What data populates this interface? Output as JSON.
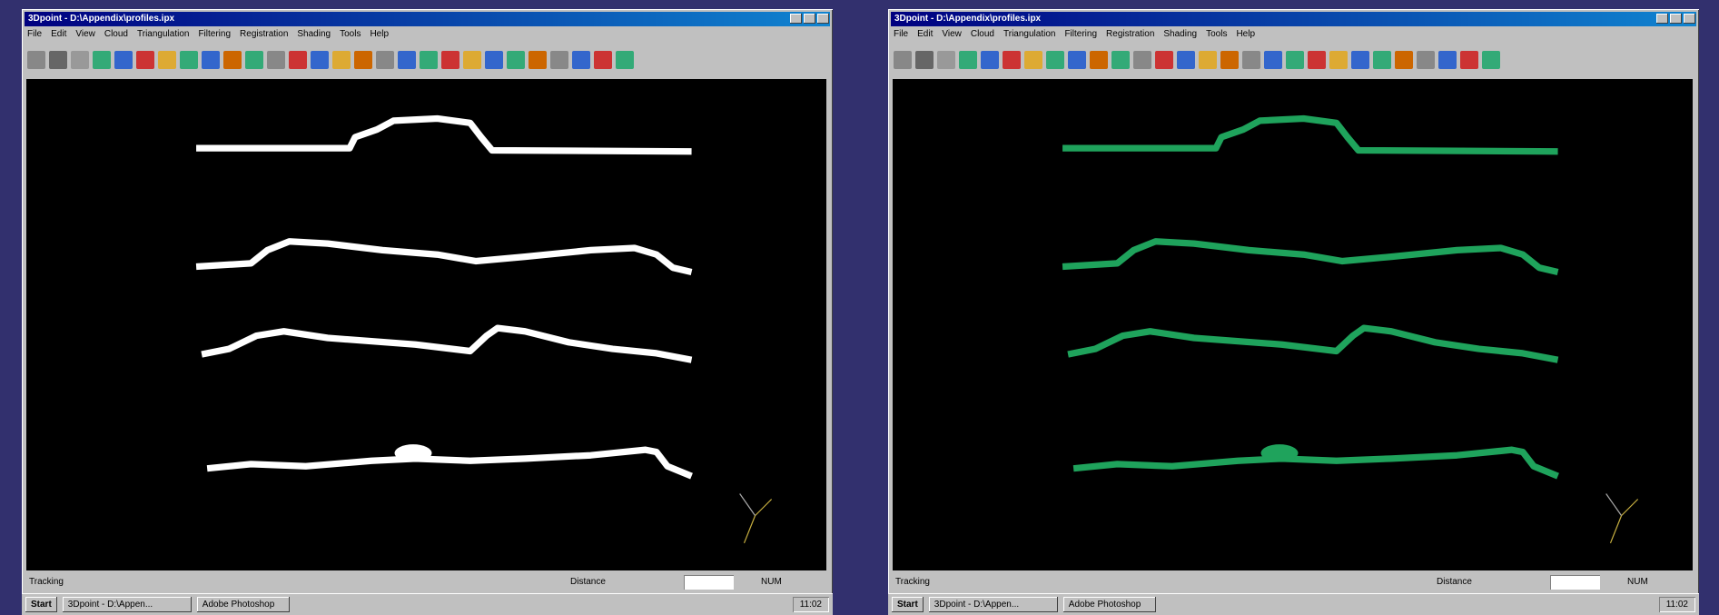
{
  "windows": [
    {
      "title": "3Dpoint - D:\\Appendix\\profiles.ipx",
      "menu": [
        "File",
        "Edit",
        "View",
        "Cloud",
        "Triangulation",
        "Filtering",
        "Registration",
        "Shading",
        "Tools",
        "Help"
      ],
      "status": "Tracking",
      "status_mid": "Distance",
      "status_right": "NUM",
      "profile_color": "#ffffff",
      "taskbar": {
        "start": "Start",
        "tasks": [
          "3Dpoint - D:\\Appen...",
          "Adobe Photoshop"
        ],
        "clock": "11:02"
      }
    },
    {
      "title": "3Dpoint - D:\\Appendix\\profiles.ipx",
      "menu": [
        "File",
        "Edit",
        "View",
        "Cloud",
        "Triangulation",
        "Filtering",
        "Registration",
        "Shading",
        "Tools",
        "Help"
      ],
      "status": "Tracking",
      "status_mid": "Distance",
      "status_right": "NUM",
      "profile_color": "#1fa35c",
      "taskbar": {
        "start": "Start",
        "tasks": [
          "3Dpoint - D:\\Appen...",
          "Adobe Photoshop"
        ],
        "clock": "11:02"
      }
    }
  ]
}
